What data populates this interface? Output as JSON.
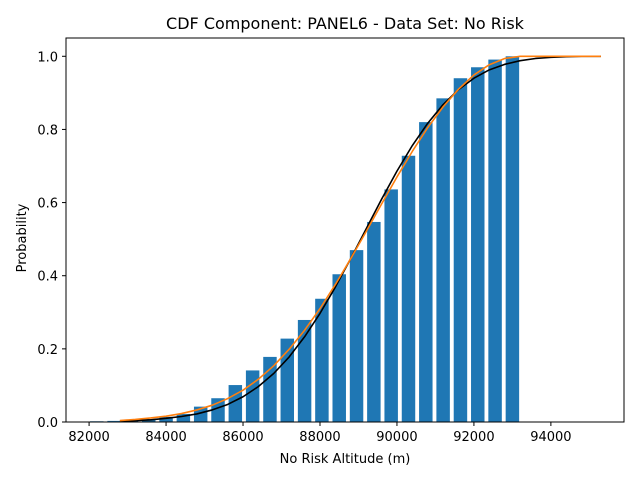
{
  "chart_data": {
    "type": "bar",
    "title": "CDF Component: PANEL6 - Data Set: No Risk",
    "xlabel": "No Risk Altitude (m)",
    "ylabel": "Probability",
    "xlim": [
      81400,
      95900
    ],
    "ylim": [
      0,
      1.05
    ],
    "xticks": [
      82000,
      84000,
      86000,
      88000,
      90000,
      92000,
      94000
    ],
    "yticks": [
      0.0,
      0.2,
      0.4,
      0.6,
      0.8,
      1.0
    ],
    "grid": false,
    "bar_color": "#1f77b4",
    "bar_width": 350,
    "bars": {
      "x": [
        82200,
        82650,
        83100,
        83550,
        84000,
        84450,
        84900,
        85350,
        85800,
        86250,
        86700,
        87150,
        87600,
        88050,
        88500,
        88950,
        89400,
        89850,
        90300,
        90750,
        91200,
        91650,
        92100,
        92550,
        93000
      ],
      "values": [
        0.002,
        0.003,
        0.005,
        0.008,
        0.014,
        0.022,
        0.042,
        0.065,
        0.101,
        0.141,
        0.178,
        0.228,
        0.279,
        0.337,
        0.404,
        0.47,
        0.547,
        0.636,
        0.728,
        0.82,
        0.885,
        0.94,
        0.97,
        0.991,
        1.0
      ]
    },
    "series": [
      {
        "type": "line",
        "color": "#000000",
        "x": [
          82800,
          83200,
          83600,
          84000,
          84400,
          84800,
          85200,
          85600,
          86000,
          86400,
          86800,
          87200,
          87600,
          88000,
          88400,
          88800,
          89200,
          89600,
          90000,
          90400,
          90800,
          91200,
          91600,
          92000,
          92400,
          92800,
          93200,
          93600,
          94000,
          94400,
          94800,
          95300
        ],
        "values": [
          0.002,
          0.004,
          0.006,
          0.01,
          0.015,
          0.022,
          0.033,
          0.048,
          0.069,
          0.097,
          0.133,
          0.178,
          0.233,
          0.297,
          0.369,
          0.447,
          0.528,
          0.609,
          0.686,
          0.756,
          0.817,
          0.868,
          0.909,
          0.94,
          0.963,
          0.978,
          0.988,
          0.994,
          0.997,
          0.999,
          1.0,
          1.0
        ]
      },
      {
        "type": "line",
        "color": "#ff7f0e",
        "x": [
          82800,
          83200,
          83600,
          84000,
          84400,
          84800,
          85200,
          85600,
          86000,
          86400,
          86800,
          87200,
          87600,
          88000,
          88400,
          88800,
          89200,
          89600,
          90000,
          90400,
          90800,
          91200,
          91600,
          92000,
          92400,
          92800,
          93200,
          93600,
          94000,
          94800,
          95300
        ],
        "values": [
          0.004,
          0.007,
          0.011,
          0.016,
          0.023,
          0.033,
          0.046,
          0.064,
          0.087,
          0.117,
          0.154,
          0.199,
          0.251,
          0.31,
          0.376,
          0.447,
          0.521,
          0.596,
          0.67,
          0.74,
          0.805,
          0.862,
          0.91,
          0.949,
          0.977,
          0.994,
          1.0,
          1.0,
          1.0,
          1.0,
          1.0
        ]
      }
    ]
  }
}
